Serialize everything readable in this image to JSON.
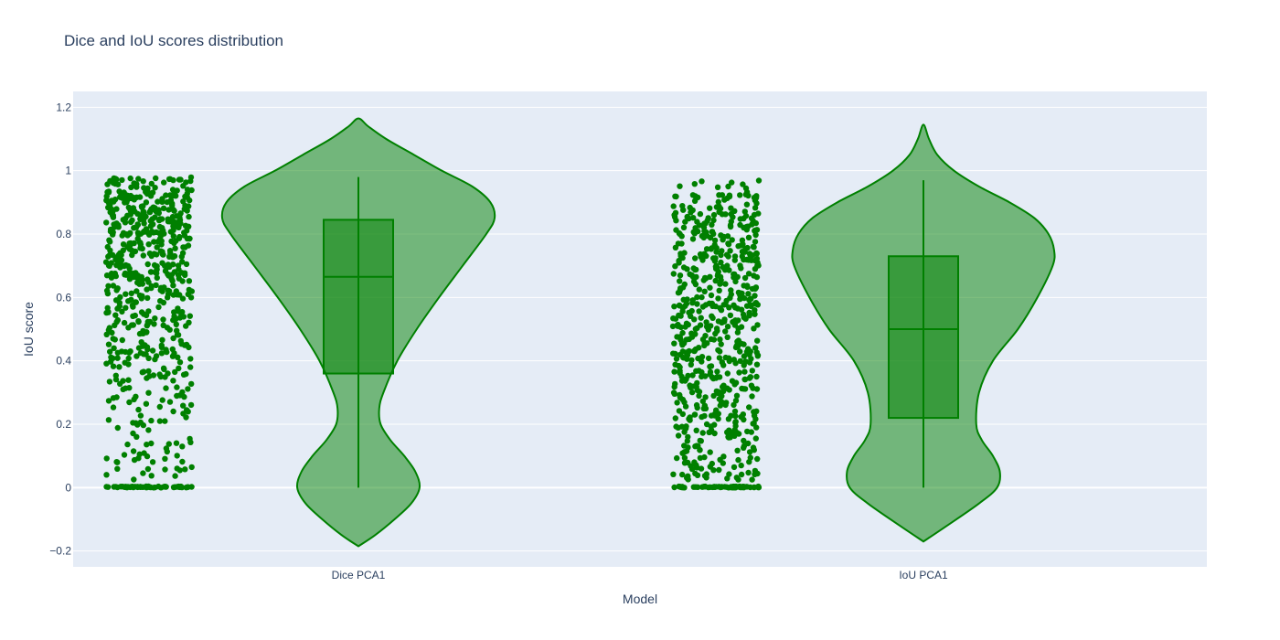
{
  "colors": {
    "plot_bg": "#e5ecf6",
    "grid": "#ffffff",
    "marker": "#008000",
    "violin_fill": "rgba(0,128,0,0.5)",
    "box_fill": "rgba(0,128,0,0.5)",
    "line": "#008000"
  },
  "chart_data": {
    "type": "violin",
    "title": "Dice and IoU scores distribution",
    "xlabel": "Model",
    "ylabel": "IoU score",
    "ylim": [
      -0.25,
      1.25
    ],
    "yticks": [
      -0.2,
      0,
      0.2,
      0.4,
      0.6,
      0.8,
      1,
      1.2
    ],
    "ytick_labels": [
      "−0.2",
      "0",
      "0.2",
      "0.4",
      "0.6",
      "0.8",
      "1",
      "1.2"
    ],
    "grid": true,
    "legend": "none",
    "points": "all (jittered, left of violin)",
    "categories": [
      "Dice PCA1",
      "IoU PCA1"
    ],
    "series": [
      {
        "category": "Dice PCA1",
        "box": {
          "min": 0,
          "q1": 0.36,
          "median": 0.665,
          "q3": 0.845,
          "max": 0.98
        },
        "violin_extent": [
          -0.185,
          1.165
        ],
        "density_profile": [
          [
            -0.185,
            0.0
          ],
          [
            -0.15,
            0.12
          ],
          [
            -0.1,
            0.26
          ],
          [
            -0.05,
            0.38
          ],
          [
            0.0,
            0.44
          ],
          [
            0.05,
            0.41
          ],
          [
            0.1,
            0.33
          ],
          [
            0.15,
            0.23
          ],
          [
            0.2,
            0.16
          ],
          [
            0.25,
            0.15
          ],
          [
            0.3,
            0.18
          ],
          [
            0.4,
            0.28
          ],
          [
            0.5,
            0.42
          ],
          [
            0.6,
            0.58
          ],
          [
            0.7,
            0.75
          ],
          [
            0.8,
            0.92
          ],
          [
            0.85,
            0.98
          ],
          [
            0.9,
            0.95
          ],
          [
            0.95,
            0.82
          ],
          [
            1.0,
            0.6
          ],
          [
            1.05,
            0.4
          ],
          [
            1.1,
            0.2
          ],
          [
            1.14,
            0.07
          ],
          [
            1.165,
            0.0
          ]
        ],
        "point_density": [
          [
            0.0,
            55
          ],
          [
            0.05,
            12
          ],
          [
            0.1,
            16
          ],
          [
            0.15,
            10
          ],
          [
            0.2,
            12
          ],
          [
            0.25,
            14
          ],
          [
            0.3,
            16
          ],
          [
            0.35,
            22
          ],
          [
            0.4,
            26
          ],
          [
            0.45,
            30
          ],
          [
            0.5,
            30
          ],
          [
            0.55,
            32
          ],
          [
            0.6,
            36
          ],
          [
            0.65,
            40
          ],
          [
            0.7,
            44
          ],
          [
            0.75,
            50
          ],
          [
            0.8,
            56
          ],
          [
            0.85,
            60
          ],
          [
            0.9,
            62
          ],
          [
            0.95,
            40
          ],
          [
            0.98,
            8
          ]
        ]
      },
      {
        "category": "IoU PCA1",
        "box": {
          "min": 0,
          "q1": 0.22,
          "median": 0.5,
          "q3": 0.73,
          "max": 0.97
        },
        "violin_extent": [
          -0.17,
          1.145
        ],
        "density_profile": [
          [
            -0.17,
            0.0
          ],
          [
            -0.12,
            0.17
          ],
          [
            -0.05,
            0.4
          ],
          [
            0.0,
            0.53
          ],
          [
            0.05,
            0.55
          ],
          [
            0.1,
            0.5
          ],
          [
            0.15,
            0.42
          ],
          [
            0.2,
            0.38
          ],
          [
            0.3,
            0.4
          ],
          [
            0.4,
            0.5
          ],
          [
            0.5,
            0.68
          ],
          [
            0.6,
            0.82
          ],
          [
            0.7,
            0.93
          ],
          [
            0.75,
            0.94
          ],
          [
            0.8,
            0.9
          ],
          [
            0.85,
            0.8
          ],
          [
            0.9,
            0.62
          ],
          [
            0.95,
            0.4
          ],
          [
            1.0,
            0.22
          ],
          [
            1.05,
            0.1
          ],
          [
            1.1,
            0.04
          ],
          [
            1.145,
            0.0
          ]
        ],
        "point_density": [
          [
            0.0,
            60
          ],
          [
            0.05,
            30
          ],
          [
            0.1,
            24
          ],
          [
            0.15,
            28
          ],
          [
            0.2,
            32
          ],
          [
            0.25,
            34
          ],
          [
            0.3,
            36
          ],
          [
            0.35,
            36
          ],
          [
            0.4,
            38
          ],
          [
            0.45,
            40
          ],
          [
            0.5,
            40
          ],
          [
            0.55,
            40
          ],
          [
            0.6,
            40
          ],
          [
            0.65,
            40
          ],
          [
            0.7,
            40
          ],
          [
            0.75,
            40
          ],
          [
            0.8,
            40
          ],
          [
            0.85,
            38
          ],
          [
            0.9,
            34
          ],
          [
            0.95,
            10
          ]
        ]
      }
    ]
  }
}
